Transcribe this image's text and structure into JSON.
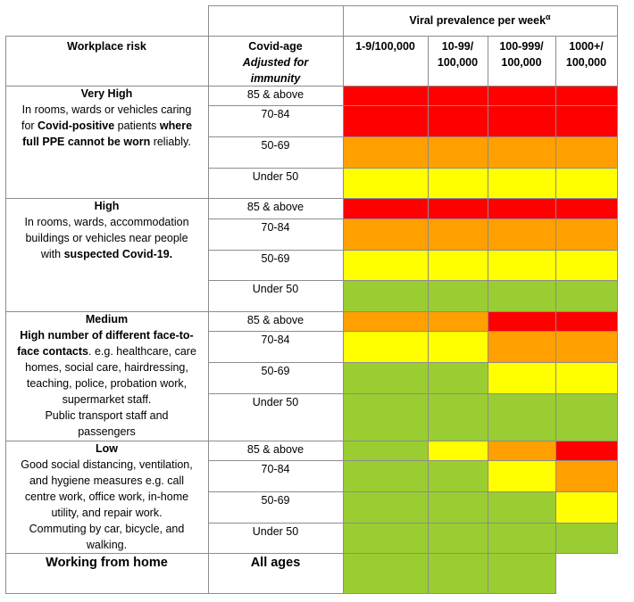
{
  "header": {
    "viral_prevalence_label": "Viral prevalence per week",
    "viral_prevalence_sup": "α",
    "workplace_risk": "Workplace risk",
    "covid_age": "Covid-age",
    "adjusted": "Adjusted for",
    "immunity": "immunity",
    "prevalence_columns": [
      {
        "line1": "1-9/100,000",
        "line2": ""
      },
      {
        "line1": "10-99/",
        "line2": "100,000"
      },
      {
        "line1": "100-999/",
        "line2": "100,000"
      },
      {
        "line1": "1000+/",
        "line2": "100,000"
      }
    ]
  },
  "colors": {
    "R": "#ff0000",
    "O": "#ffa000",
    "Y": "#ffff00",
    "G": "#9acd32",
    "W": "#ffffff"
  },
  "risk_groups": [
    {
      "title": "Very High",
      "lines": [
        [
          {
            "t": "In rooms, wards or vehicles caring",
            "b": false
          }
        ],
        [
          {
            "t": "for ",
            "b": false
          },
          {
            "t": "Covid-positive",
            "b": true
          },
          {
            "t": " patients ",
            "b": false
          },
          {
            "t": "where",
            "b": true
          }
        ],
        [
          {
            "t": "full PPE cannot be worn",
            "b": true
          },
          {
            "t": " reliably.",
            "b": false
          }
        ]
      ],
      "ages": [
        "85 & above",
        "70-84",
        "50-69",
        "Under 50"
      ],
      "grid": [
        [
          "R",
          "R",
          "R",
          "R"
        ],
        [
          "R",
          "R",
          "R",
          "R"
        ],
        [
          "O",
          "O",
          "O",
          "O"
        ],
        [
          "Y",
          "Y",
          "Y",
          "Y"
        ]
      ]
    },
    {
      "title": "High",
      "lines": [
        [
          {
            "t": "In rooms, wards, accommodation",
            "b": false
          }
        ],
        [
          {
            "t": "buildings or vehicles near people",
            "b": false
          }
        ],
        [
          {
            "t": "with ",
            "b": false
          },
          {
            "t": "suspected Covid-19.",
            "b": true
          }
        ]
      ],
      "ages": [
        "85 & above",
        "70-84",
        "50-69",
        "Under 50"
      ],
      "grid": [
        [
          "R",
          "R",
          "R",
          "R"
        ],
        [
          "O",
          "O",
          "O",
          "O"
        ],
        [
          "Y",
          "Y",
          "Y",
          "Y"
        ],
        [
          "G",
          "G",
          "G",
          "G"
        ]
      ]
    },
    {
      "title": "Medium",
      "lines": [
        [
          {
            "t": "High number of different face-to-",
            "b": true
          }
        ],
        [
          {
            "t": "face contacts",
            "b": true
          },
          {
            "t": ". e.g. healthcare, care",
            "b": false
          }
        ],
        [
          {
            "t": "homes, social care, hairdressing,",
            "b": false
          }
        ],
        [
          {
            "t": "teaching, police, probation work,",
            "b": false
          }
        ],
        [
          {
            "t": "supermarket staff.",
            "b": false
          }
        ],
        [
          {
            "t": "Public transport staff and",
            "b": false
          }
        ],
        [
          {
            "t": "passengers",
            "b": false
          }
        ]
      ],
      "ages": [
        "85 & above",
        "70-84",
        "50-69",
        "Under 50"
      ],
      "grid": [
        [
          "O",
          "O",
          "R",
          "R"
        ],
        [
          "Y",
          "Y",
          "O",
          "O"
        ],
        [
          "G",
          "G",
          "Y",
          "Y"
        ],
        [
          "G",
          "G",
          "G",
          "G"
        ]
      ]
    },
    {
      "title": "Low",
      "lines": [
        [
          {
            "t": "Good social distancing, ventilation,",
            "b": false
          }
        ],
        [
          {
            "t": "and hygiene measures e.g. call",
            "b": false
          }
        ],
        [
          {
            "t": "centre work, office work, in-home",
            "b": false
          }
        ],
        [
          {
            "t": "utility, and repair work.",
            "b": false
          }
        ],
        [
          {
            "t": "Commuting by car, bicycle, and",
            "b": false
          }
        ],
        [
          {
            "t": "walking.",
            "b": false
          }
        ]
      ],
      "ages": [
        "85 & above",
        "70-84",
        "50-69",
        "Under 50"
      ],
      "grid": [
        [
          "G",
          "Y",
          "O",
          "R"
        ],
        [
          "G",
          "G",
          "Y",
          "O"
        ],
        [
          "G",
          "G",
          "G",
          "Y"
        ],
        [
          "G",
          "G",
          "G",
          "G"
        ]
      ]
    }
  ],
  "wfh": {
    "label": "Working from home",
    "age": "All ages",
    "grid": [
      "G",
      "G",
      "G",
      "W"
    ]
  }
}
